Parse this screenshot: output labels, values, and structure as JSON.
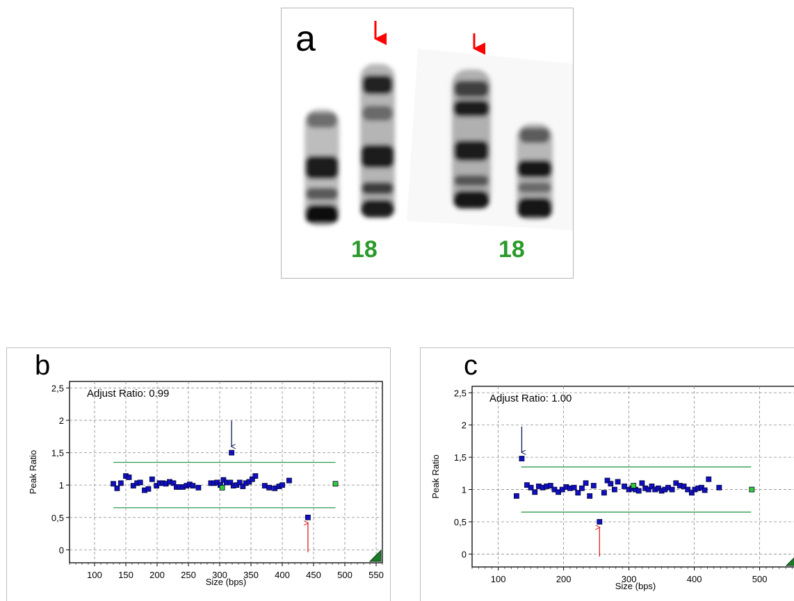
{
  "figure": {
    "panel_a": {
      "letter": "a",
      "chromosome_labels": [
        "18",
        "18"
      ],
      "colors": {
        "arrow": "#ff0000",
        "label": "#2a9a2a"
      }
    }
  },
  "chart_data": [
    {
      "panel_letter": "b",
      "type": "scatter",
      "annotation": "Adjust Ratio: 0.99",
      "xlabel": "Size (bps)",
      "ylabel": "Peak Ratio",
      "xlim": [
        60,
        560
      ],
      "ylim": [
        -0.2,
        2.6
      ],
      "xticks": [
        100,
        150,
        200,
        250,
        300,
        350,
        400,
        450,
        500,
        550
      ],
      "xtick_labels": [
        "100",
        "150",
        "200",
        "250",
        "300",
        "350",
        "400",
        "450",
        "500",
        "550"
      ],
      "yticks": [
        0,
        0.5,
        1,
        1.5,
        2,
        2.5
      ],
      "ytick_labels": [
        "0",
        "0,5",
        "1",
        "1,5",
        "2",
        "2,5"
      ],
      "grid": true,
      "threshold_lines": {
        "y": [
          0.65,
          1.35
        ],
        "x_range": [
          130,
          485
        ],
        "color": "#2e9a4e"
      },
      "colors": {
        "probe": "#1010c0",
        "reference": "#33cc33",
        "arrow_up": "#0a1a5c",
        "arrow_down": "#e02020"
      },
      "series": [
        {
          "name": "",
          "color": "#1010c0",
          "points": [
            [
              130,
              1.02
            ],
            [
              136,
              0.95
            ],
            [
              142,
              1.03
            ],
            [
              150,
              1.14
            ],
            [
              155,
              1.12
            ],
            [
              162,
              0.99
            ],
            [
              168,
              1.03
            ],
            [
              173,
              1.04
            ],
            [
              180,
              0.92
            ],
            [
              186,
              0.94
            ],
            [
              192,
              1.09
            ],
            [
              199,
              0.99
            ],
            [
              204,
              1.03
            ],
            [
              209,
              1.03
            ],
            [
              214,
              1.02
            ],
            [
              220,
              1.05
            ],
            [
              226,
              1.03
            ],
            [
              231,
              0.97
            ],
            [
              236,
              0.97
            ],
            [
              241,
              0.97
            ],
            [
              247,
              0.99
            ],
            [
              252,
              1.01
            ],
            [
              257,
              0.99
            ],
            [
              266,
              0.96
            ],
            [
              286,
              1.03
            ],
            [
              291,
              1.03
            ],
            [
              296,
              1.04
            ],
            [
              301,
              1.0
            ],
            [
              306,
              1.08
            ],
            [
              311,
              1.04
            ],
            [
              317,
              1.04
            ],
            [
              322,
              0.99
            ],
            [
              327,
              1.0
            ],
            [
              332,
              1.04
            ],
            [
              337,
              0.98
            ],
            [
              342,
              1.03
            ],
            [
              347,
              1.05
            ],
            [
              352,
              1.09
            ],
            [
              357,
              1.14
            ],
            [
              372,
              0.99
            ],
            [
              379,
              0.96
            ],
            [
              388,
              0.95
            ],
            [
              395,
              0.98
            ],
            [
              400,
              1.0
            ],
            [
              411,
              1.07
            ],
            [
              319,
              1.5
            ],
            [
              441,
              0.5
            ]
          ]
        },
        {
          "name": "",
          "color": "#33cc33",
          "points": [
            [
              304,
              0.96
            ],
            [
              485,
              1.02
            ]
          ]
        }
      ],
      "highlights": [
        {
          "x": 319,
          "y": 1.5,
          "arrow": "down",
          "color": "#0a1a5c"
        },
        {
          "x": 441,
          "y": 0.5,
          "arrow": "up",
          "color": "#e02020"
        }
      ]
    },
    {
      "panel_letter": "c",
      "type": "scatter",
      "annotation": "Adjust Ratio: 1.00",
      "xlabel": "Size (bps)",
      "ylabel": "Peak Ratio",
      "xlim": [
        60,
        560
      ],
      "ylim": [
        -0.2,
        2.6
      ],
      "xticks": [
        100,
        200,
        300,
        400,
        500
      ],
      "xtick_labels": [
        "100",
        "200",
        "300",
        "400",
        "500"
      ],
      "yticks": [
        0,
        0.5,
        1,
        1.5,
        2,
        2.5
      ],
      "ytick_labels": [
        "0",
        "0,5",
        "1",
        "1,5",
        "2",
        "2,5"
      ],
      "grid": true,
      "threshold_lines": {
        "y": [
          0.65,
          1.35
        ],
        "x_range": [
          135,
          487
        ],
        "color": "#2e9a4e"
      },
      "colors": {
        "probe": "#1010c0",
        "reference": "#33cc33",
        "arrow_up": "#0a1a5c",
        "arrow_down": "#e02020"
      },
      "series": [
        {
          "name": "",
          "color": "#1010c0",
          "points": [
            [
              128,
              0.9
            ],
            [
              144,
              1.07
            ],
            [
              150,
              1.03
            ],
            [
              156,
              0.96
            ],
            [
              162,
              1.05
            ],
            [
              168,
              1.03
            ],
            [
              174,
              1.05
            ],
            [
              180,
              1.06
            ],
            [
              186,
              1.0
            ],
            [
              192,
              0.96
            ],
            [
              198,
              1.0
            ],
            [
              204,
              1.04
            ],
            [
              210,
              1.02
            ],
            [
              216,
              1.03
            ],
            [
              222,
              0.95
            ],
            [
              228,
              1.02
            ],
            [
              234,
              1.1
            ],
            [
              240,
              0.9
            ],
            [
              246,
              1.06
            ],
            [
              262,
              0.95
            ],
            [
              267,
              1.14
            ],
            [
              272,
              1.09
            ],
            [
              278,
              1.0
            ],
            [
              283,
              1.12
            ],
            [
              293,
              1.05
            ],
            [
              300,
              1.0
            ],
            [
              305,
              1.02
            ],
            [
              310,
              1.0
            ],
            [
              315,
              0.98
            ],
            [
              320,
              1.1
            ],
            [
              325,
              1.02
            ],
            [
              330,
              1.0
            ],
            [
              335,
              1.05
            ],
            [
              340,
              1.0
            ],
            [
              345,
              1.02
            ],
            [
              350,
              0.98
            ],
            [
              355,
              1.0
            ],
            [
              360,
              1.03
            ],
            [
              366,
              1.0
            ],
            [
              372,
              1.1
            ],
            [
              378,
              1.06
            ],
            [
              384,
              1.05
            ],
            [
              390,
              1.0
            ],
            [
              396,
              0.95
            ],
            [
              401,
              1.0
            ],
            [
              406,
              1.02
            ],
            [
              411,
              1.03
            ],
            [
              416,
              0.99
            ],
            [
              422,
              1.16
            ],
            [
              438,
              1.03
            ],
            [
              136,
              1.48
            ],
            [
              255,
              0.5
            ]
          ]
        },
        {
          "name": "",
          "color": "#33cc33",
          "points": [
            [
              307,
              1.06
            ],
            [
              488,
              1.0
            ]
          ]
        }
      ],
      "highlights": [
        {
          "x": 136,
          "y": 1.48,
          "arrow": "down",
          "color": "#0a1a5c"
        },
        {
          "x": 255,
          "y": 0.5,
          "arrow": "up",
          "color": "#e02020"
        }
      ]
    }
  ]
}
